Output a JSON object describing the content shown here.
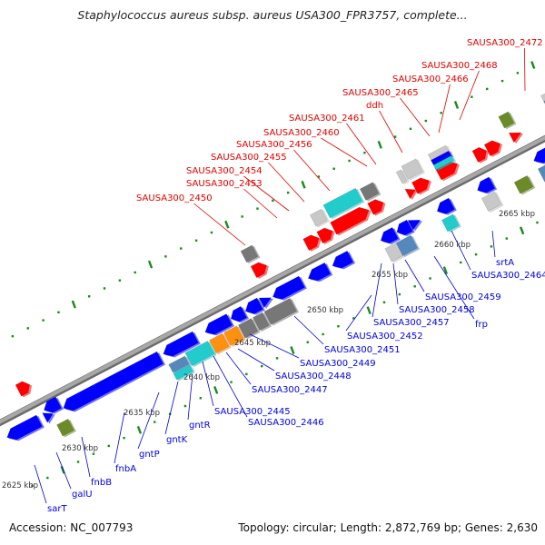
{
  "title": "Staphylococcus aureus subsp. aureus USA300_FPR3757, complete...",
  "footer": {
    "accession": "Accession: NC_007793",
    "summary": "Topology: circular; Length: 2,872,769 bp; Genes: 2,630"
  },
  "colors": {
    "forward_gene": "#ff0000",
    "reverse_gene": "#0000ff",
    "backbone": "#999999",
    "tick": "#1a8a1a",
    "label_fwd": "#e00000",
    "label_rev": "#0000e0",
    "gray_feature": "#777777",
    "light_gray_feature": "#c8c8c8",
    "cyan_feature": "#22cccc",
    "steel_feature": "#5588bb",
    "olive_feature": "#6b8a2a",
    "orange_feature": "#ff9010"
  },
  "scale_labels": [
    "2625 kbp",
    "2630 kbp",
    "2635 kbp",
    "2640 kbp",
    "2645 kbp",
    "2650 kbp",
    "2655 kbp",
    "2660 kbp",
    "2665 kbp"
  ],
  "forward_labels": [
    "SAUSA300_2450",
    "SAUSA300_2453",
    "SAUSA300_2454",
    "SAUSA300_2455",
    "SAUSA300_2456",
    "SAUSA300_2460",
    "SAUSA300_2461",
    "ddh",
    "SAUSA300_2465",
    "SAUSA300_2466",
    "SAUSA300_2468",
    "SAUSA300_2472"
  ],
  "reverse_labels": [
    "sarT",
    "galU",
    "fnbB",
    "fnbA",
    "gntP",
    "gntK",
    "gntR",
    "SAUSA300_2445",
    "SAUSA300_2446",
    "SAUSA300_2447",
    "SAUSA300_2448",
    "SAUSA300_2449",
    "SAUSA300_2451",
    "SAUSA300_2452",
    "SAUSA300_2457",
    "SAUSA300_2458",
    "SAUSA300_2459",
    "frp",
    "SAUSA300_2464",
    "srtA"
  ]
}
